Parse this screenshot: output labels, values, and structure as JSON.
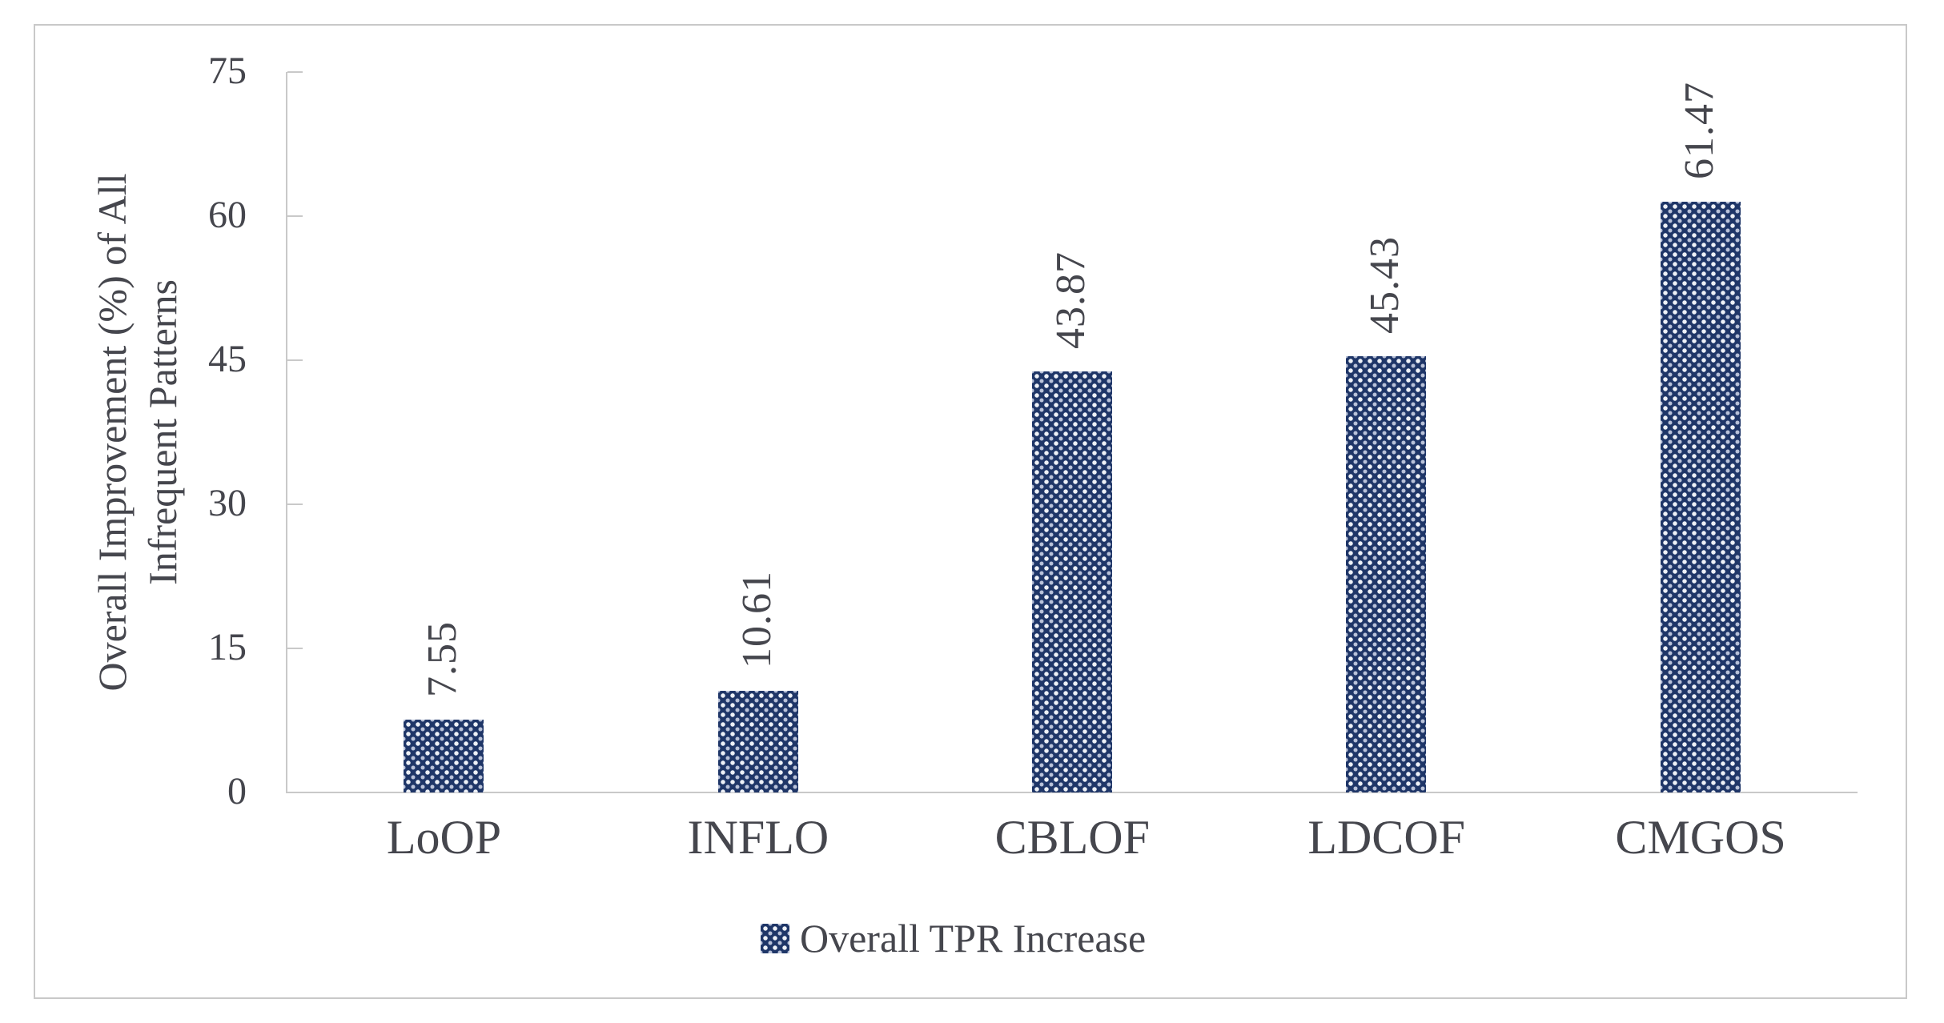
{
  "chart_data": {
    "type": "bar",
    "categories": [
      "LoOP",
      "INFLO",
      "CBLOF",
      "LDCOF",
      "CMGOS"
    ],
    "values": [
      7.55,
      10.61,
      43.87,
      45.43,
      61.47
    ],
    "value_labels": [
      "7.55",
      "10.61",
      "43.87",
      "45.43",
      "61.47"
    ],
    "title": "",
    "xlabel": "",
    "ylabel": "Overall Improvement (%) of All Infrequent Patterns",
    "ylabel_lines": [
      "Overall Improvement (%) of All",
      "Infrequent Patterns"
    ],
    "yticks": [
      75,
      60,
      45,
      30,
      15,
      0
    ],
    "ylim": [
      0,
      75
    ],
    "grid": false,
    "legend_label": "Overall TPR Increase",
    "legend_position": "bottom-center",
    "bar_pattern": "navy-with-white-dot-lattice",
    "colors": {
      "bar_fill": "#1f3668",
      "bar_dot": "#eef1f7",
      "axis_line": "#c9c9c9",
      "frame_border": "#c9c9c9",
      "text": "#45464d",
      "background": "#ffffff"
    }
  }
}
